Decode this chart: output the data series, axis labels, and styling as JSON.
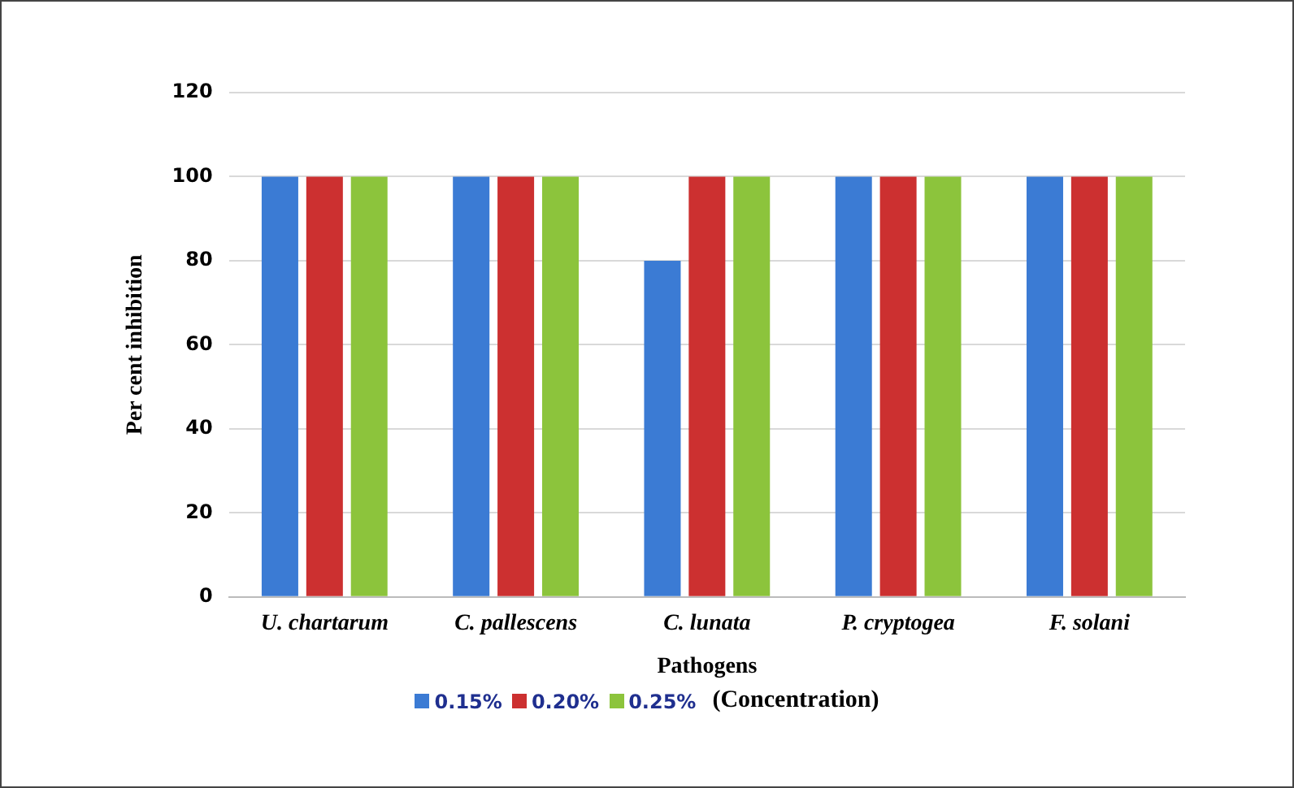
{
  "chart_data": {
    "type": "bar",
    "xlabel": "Pathogens",
    "ylabel": "Per cent inhibition",
    "legend_title": "(Concentration)",
    "categories": [
      "U. chartarum",
      "C. pallescens",
      "C. lunata",
      "P. cryptogea",
      "F. solani"
    ],
    "series": [
      {
        "name": "0.15%",
        "color": "#3b7bd4",
        "values": [
          100,
          100,
          80,
          100,
          100
        ]
      },
      {
        "name": "0.20%",
        "color": "#cc3030",
        "values": [
          100,
          100,
          100,
          100,
          100
        ]
      },
      {
        "name": "0.25%",
        "color": "#8cc43c",
        "values": [
          100,
          100,
          100,
          100,
          100
        ]
      }
    ],
    "ylim": [
      0,
      120
    ],
    "yticks": [
      0,
      20,
      40,
      60,
      80,
      100,
      120
    ],
    "grid": "y",
    "legend": "bottom"
  }
}
